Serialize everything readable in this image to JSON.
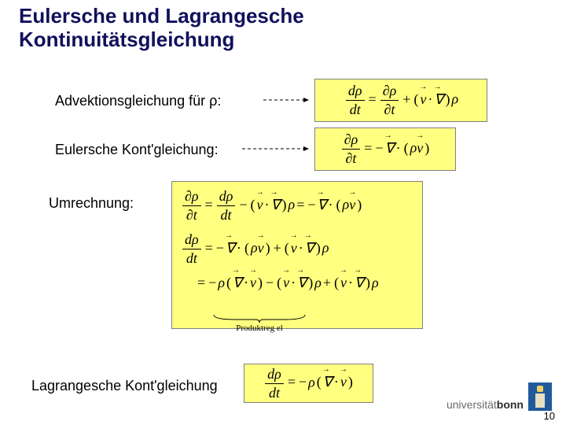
{
  "title_line1": "Eulersche und Lagrangesche",
  "title_line2": "Kontinuitätsgleichung",
  "labels": {
    "advection": "Advektionsgleichung für  ρ:",
    "euler": "Eulersche Kont'gleichung:",
    "conversion": "Umrechnung:",
    "lagrange": "Lagrangesche Kont'gleichung"
  },
  "equations": {
    "advection_html": "<span class='frac'><span>dρ</span><span>dt</span></span><span class='op'>=</span><span class='frac'><span>∂ρ</span><span>∂t</span></span><span class='op'>+</span><span class='op'>(</span><span class='vec'>v</span><span class='op'>·</span><span class='vec'>∇</span><span class='op'>)</span>ρ",
    "euler_html": "<span class='frac'><span>∂ρ</span><span>∂t</span></span><span class='op'>=</span><span class='op'>−</span><span class='vec'>∇</span><span class='op'>·</span><span class='op'>(</span>ρ<span class='vec'>v</span><span class='op'>)</span>",
    "conv_line1_html": "<span class='frac'><span>∂ρ</span><span>∂t</span></span><span class='op'>=</span><span class='frac'><span>dρ</span><span>dt</span></span><span class='op'>−</span><span class='op'>(</span><span class='vec'>v</span><span class='op'>·</span><span class='vec'>∇</span><span class='op'>)</span>ρ<span class='op'>=</span><span class='op'>−</span><span class='vec'>∇</span><span class='op'>·</span><span class='op'>(</span>ρ<span class='vec'>v</span><span class='op'>)</span>",
    "conv_line2_html": "<span class='frac'><span>dρ</span><span>dt</span></span><span class='op'>=</span><span class='op'>−</span><span class='vec'>∇</span><span class='op'>·</span><span class='op'>(</span>ρ<span class='vec'>v</span><span class='op'>)</span><span class='op'>+</span><span class='op'>(</span><span class='vec'>v</span><span class='op'>·</span><span class='vec'>∇</span><span class='op'>)</span>ρ",
    "conv_line3_html": "<span class='op'>=</span><span class='op'>−</span>ρ<span class='op'>(</span><span class='vec'>∇</span><span class='op'>·</span><span class='vec'>v</span><span class='op'>)</span><span class='op'>−</span><span class='op'>(</span><span class='vec'>v</span><span class='op'>·</span><span class='vec'>∇</span><span class='op'>)</span>ρ<span class='op'>+</span><span class='op'>(</span><span class='vec'>v</span><span class='op'>·</span><span class='vec'>∇</span><span class='op'>)</span>ρ",
    "lagrange_html": "<span class='frac'><span>dρ</span><span>dt</span></span><span class='op'>=</span><span class='op'>−</span>ρ<span class='op'>(</span><span class='vec'>∇</span><span class='op'>·</span><span class='vec'>v</span><span class='op'>)</span>",
    "product_rule_label": "Produktreg el"
  },
  "footer": {
    "uni_prefix": "universität",
    "uni_name": "bonn",
    "page_number": "10"
  },
  "colors": {
    "title": "#10105c",
    "highlight_bg": "#ffff80",
    "highlight_border": "#808080",
    "logo_bg": "#215a9c"
  }
}
